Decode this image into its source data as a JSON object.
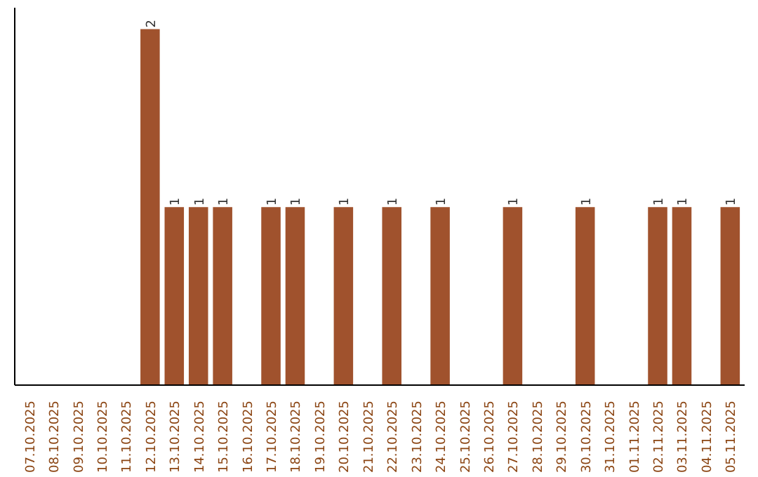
{
  "chart_data": {
    "type": "bar",
    "categories": [
      "07.10.2025",
      "08.10.2025",
      "09.10.2025",
      "10.10.2025",
      "11.10.2025",
      "12.10.2025",
      "13.10.2025",
      "14.10.2025",
      "15.10.2025",
      "16.10.2025",
      "17.10.2025",
      "18.10.2025",
      "19.10.2025",
      "20.10.2025",
      "21.10.2025",
      "22.10.2025",
      "23.10.2025",
      "24.10.2025",
      "25.10.2025",
      "26.10.2025",
      "27.10.2025",
      "28.10.2025",
      "29.10.2025",
      "30.10.2025",
      "31.10.2025",
      "01.11.2025",
      "02.11.2025",
      "03.11.2025",
      "04.11.2025",
      "05.11.2025"
    ],
    "values": [
      0,
      0,
      0,
      0,
      0,
      2,
      1,
      1,
      1,
      0,
      1,
      1,
      0,
      1,
      0,
      1,
      0,
      1,
      0,
      0,
      1,
      0,
      0,
      1,
      0,
      0,
      1,
      1,
      0,
      1
    ],
    "value_labels": [
      null,
      null,
      null,
      null,
      null,
      "2",
      "1",
      "1",
      "1",
      null,
      "1",
      "1",
      null,
      "1",
      null,
      "1",
      null,
      "1",
      null,
      null,
      "1",
      null,
      null,
      "1",
      null,
      null,
      "1",
      "1",
      null,
      "1"
    ],
    "color": "#a0522d",
    "grid": false,
    "tick_labels": "x"
  }
}
